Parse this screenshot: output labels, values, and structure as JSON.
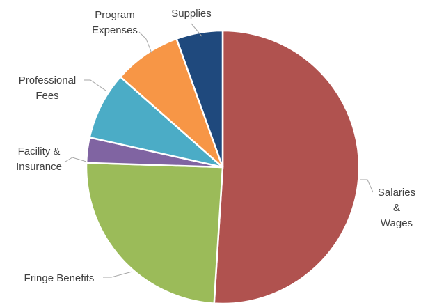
{
  "chart_data": {
    "type": "pie",
    "title": "",
    "slices": [
      {
        "label_lines": [
          "Salaries",
          "&",
          "Wages"
        ],
        "value": 51.0,
        "color": "#b0524f"
      },
      {
        "label_lines": [
          "Fringe Benefits"
        ],
        "value": 24.5,
        "color": "#9bbb59"
      },
      {
        "label_lines": [
          "Facility &",
          "Insurance"
        ],
        "value": 3.0,
        "color": "#8064a2"
      },
      {
        "label_lines": [
          "Professional",
          "Fees"
        ],
        "value": 8.0,
        "color": "#4bacc6"
      },
      {
        "label_lines": [
          "Program",
          "Expenses"
        ],
        "value": 8.0,
        "color": "#f79646"
      },
      {
        "label_lines": [
          "Supplies"
        ],
        "value": 5.5,
        "color": "#1f497d"
      }
    ],
    "start_angle": "12 o'clock",
    "direction": "clockwise",
    "legend": "none (callout labels with leader lines)"
  }
}
